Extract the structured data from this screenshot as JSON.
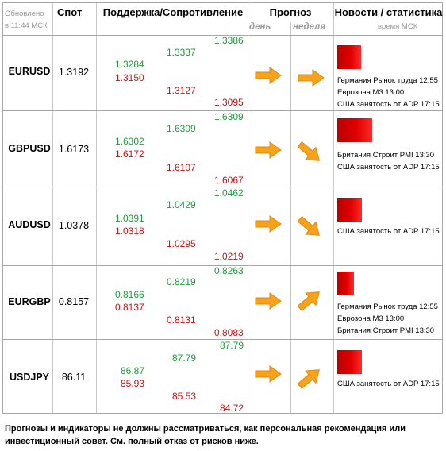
{
  "header": {
    "updated_line1": "Обновлено",
    "updated_line2": "в 11:44 МСК",
    "spot": "Спот",
    "support_resistance": "Поддержка/Сопротивление",
    "forecast": "Прогноз",
    "day": "день",
    "week": "неделя",
    "news": "Новости / статистика",
    "time": "время МСК"
  },
  "rows": [
    {
      "pair": "EURUSD",
      "spot": "1.3192",
      "levels": {
        "c1_top": "1.3284",
        "c1_bot": "1.3150",
        "c2_top": "1.3337",
        "c2_bot": "1.3127",
        "c3_top": "1.3386",
        "c3_bot": "1.3095"
      },
      "day_arrow": "right-arrow-icon",
      "week_arrow": "right-arrow-icon",
      "bar_fraction": 0.23,
      "news": [
        "Германия Рынок труда 12:55",
        "Еврозона М3 13:00",
        "США занятость  от ADP 17:15"
      ]
    },
    {
      "pair": "GBPUSD",
      "spot": "1.6173",
      "levels": {
        "c1_top": "1.6302",
        "c1_bot": "1.6172",
        "c2_top": "1.6309",
        "c2_bot": "1.6107",
        "c3_top": "1.6309",
        "c3_bot": "1.6067"
      },
      "day_arrow": "right-arrow-icon",
      "week_arrow": "down-right-arrow-icon",
      "bar_fraction": 0.47,
      "news": [
        "Британия Строит PMI 13:30",
        "США занятость  от ADP 17:15"
      ]
    },
    {
      "pair": "AUDUSD",
      "spot": "1.0378",
      "levels": {
        "c1_top": "1.0391",
        "c1_bot": "1.0318",
        "c2_top": "1.0429",
        "c2_bot": "1.0295",
        "c3_top": "1.0462",
        "c3_bot": "1.0219"
      },
      "day_arrow": "right-arrow-icon",
      "week_arrow": "down-right-arrow-icon",
      "bar_fraction": 0.25,
      "news": [
        "США занятость  от ADP 17:15"
      ]
    },
    {
      "pair": "EURGBP",
      "spot": "0.8157",
      "levels": {
        "c1_top": "0.8166",
        "c1_bot": "0.8137",
        "c2_top": "0.8219",
        "c2_bot": "0.8131",
        "c3_top": "0.8263",
        "c3_bot": "0.8083"
      },
      "day_arrow": "right-arrow-icon",
      "week_arrow": "up-right-arrow-icon",
      "bar_fraction": 0.17,
      "news": [
        "Германия Рынок труда 12:55",
        "Еврозона М3 13:00",
        "Британия Строит PMI 13:30"
      ]
    },
    {
      "pair": "USDJPY",
      "spot": "86.11",
      "levels": {
        "c1_top": "86.87",
        "c1_bot": "85.93",
        "c2_top": "87.79",
        "c2_bot": "85.53",
        "c3_top": "87.79",
        "c3_bot": "84.72"
      },
      "day_arrow": "right-arrow-icon",
      "week_arrow": "up-right-arrow-icon",
      "bar_fraction": 0.25,
      "news": [
        "США занятость  от ADP 17:15"
      ]
    }
  ],
  "colors": {
    "support_green": "#1e9c3c",
    "resistance_red": "#d10f0f",
    "arrow_orange": "#f7a21b",
    "bar_red": "#e00000"
  },
  "disclaimer": "Прогнозы и индикаторы не должны рассматриваться, как персональная рекомендация или инвестиционный совет. См. полный отказ от рисков ниже."
}
